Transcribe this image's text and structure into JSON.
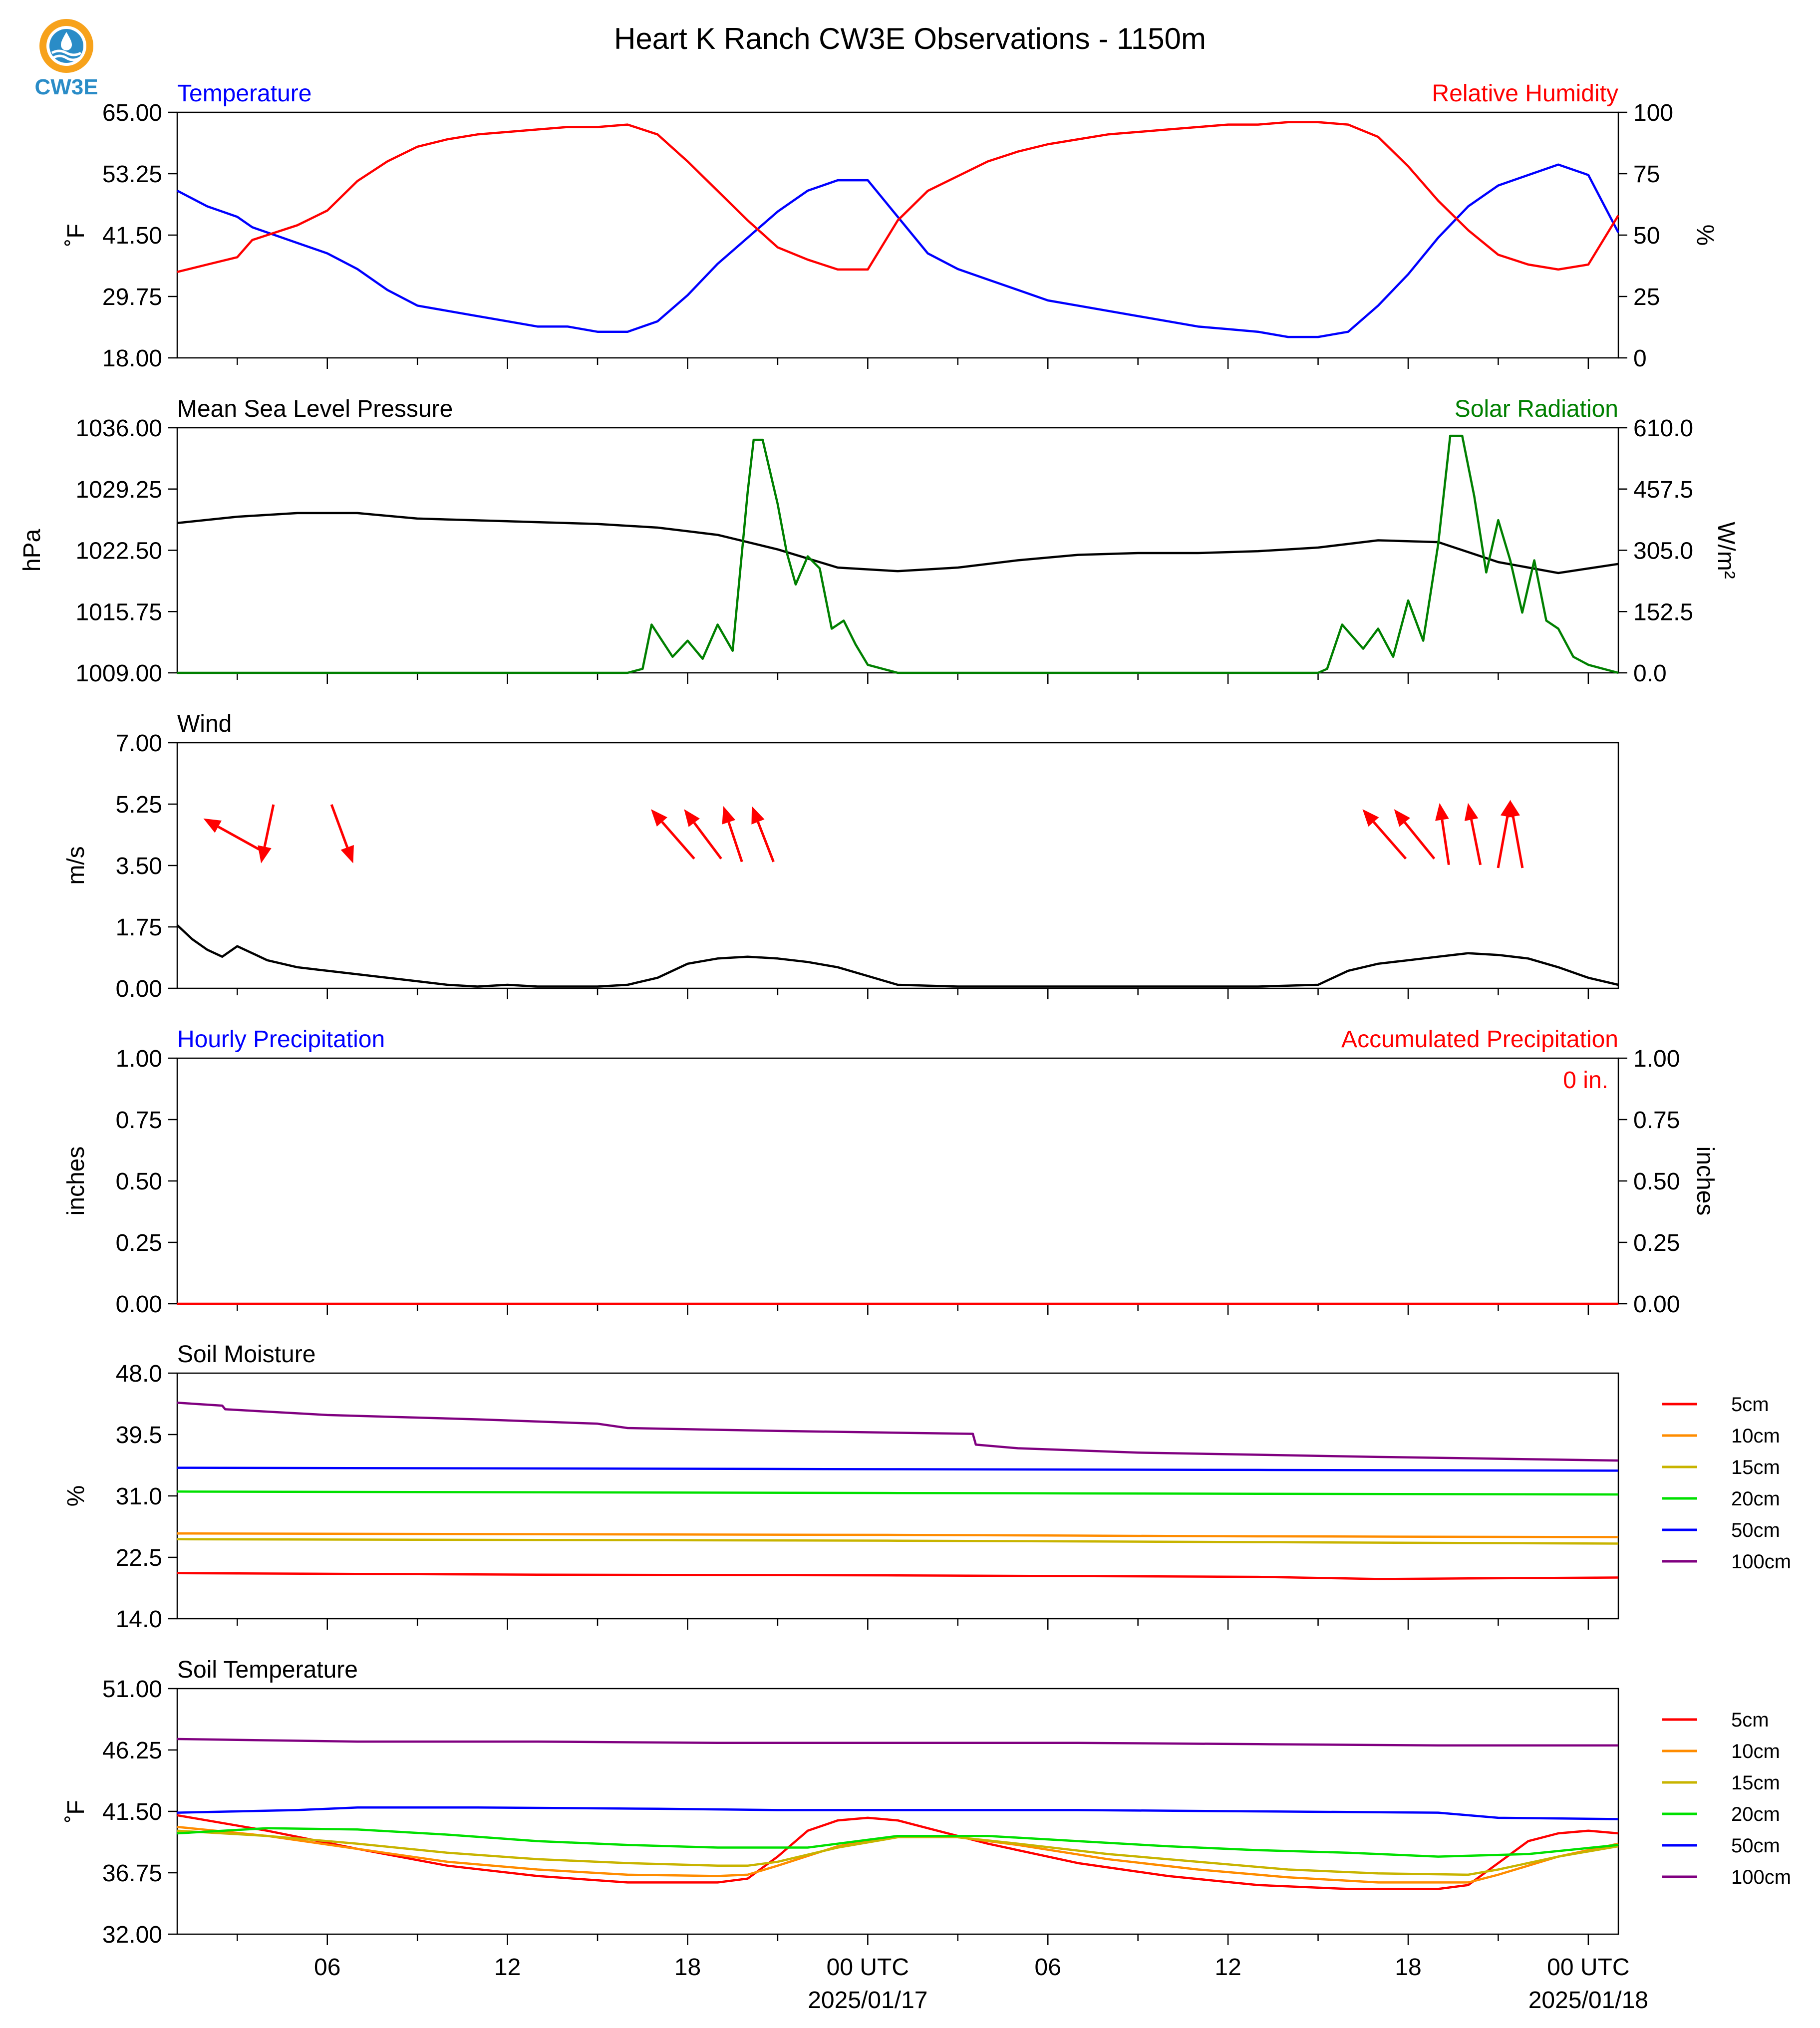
{
  "title": "Heart K Ranch CW3E Observations - 1150m",
  "logo_text": "CW3E",
  "colors": {
    "temperature": "#0000ff",
    "humidity": "#ff0000",
    "pressure": "#000000",
    "solar": "#008000",
    "wind_arrow": "#ff0000",
    "wind_line": "#000000",
    "soil_5cm": "#ff0000",
    "soil_10cm": "#ff8c00",
    "soil_15cm": "#c8b400",
    "soil_20cm": "#00e000",
    "soil_50cm": "#0000ff",
    "soil_100cm": "#800080"
  },
  "x_axis": {
    "hours_range": [
      0,
      48
    ],
    "tick_labels": [
      {
        "h": 5,
        "text": "06"
      },
      {
        "h": 11,
        "text": "12"
      },
      {
        "h": 17,
        "text": "18"
      },
      {
        "h": 23,
        "text": "00 UTC",
        "sub": "2025/01/17"
      },
      {
        "h": 29,
        "text": "06"
      },
      {
        "h": 35,
        "text": "12"
      },
      {
        "h": 41,
        "text": "18"
      },
      {
        "h": 47,
        "text": "00 UTC",
        "sub": "2025/01/18"
      }
    ]
  },
  "chart_data": [
    {
      "type": "line",
      "left_title": "Temperature",
      "right_title": "Relative Humidity",
      "ylabel": "˚F",
      "ylabel_right": "%",
      "ylim": [
        18.0,
        65.0
      ],
      "yticks": [
        "18.00",
        "29.75",
        "41.50",
        "53.25",
        "65.00"
      ],
      "ylim_right": [
        0,
        100
      ],
      "yticks_right": [
        "0",
        "25",
        "50",
        "75",
        "100"
      ],
      "series": [
        {
          "axis": "left",
          "color_key": "temperature",
          "x": [
            0,
            1,
            2,
            2.5,
            3,
            4,
            5,
            6,
            7,
            8,
            9,
            10,
            11,
            12,
            13,
            14,
            15,
            16,
            17,
            18,
            19,
            20,
            21,
            22,
            23,
            24,
            25,
            26,
            27,
            28,
            29,
            30,
            31,
            32,
            33,
            34,
            35,
            36,
            37,
            38,
            39,
            40,
            41,
            42,
            43,
            44,
            45,
            46,
            47,
            48
          ],
          "values": [
            50,
            47,
            45,
            43,
            42,
            40,
            38,
            35,
            31,
            28,
            27,
            26,
            25,
            24,
            24,
            23,
            23,
            25,
            30,
            36,
            41,
            46,
            50,
            52,
            52,
            45,
            38,
            35,
            33,
            31,
            29,
            28,
            27,
            26,
            25,
            24,
            23.5,
            23,
            22,
            22,
            23,
            28,
            34,
            41,
            47,
            51,
            53,
            55,
            53,
            42
          ]
        },
        {
          "axis": "right",
          "color_key": "humidity",
          "x": [
            0,
            1,
            2,
            2.5,
            3,
            4,
            5,
            6,
            7,
            8,
            9,
            10,
            11,
            12,
            13,
            14,
            15,
            16,
            17,
            18,
            19,
            20,
            21,
            22,
            23,
            24,
            25,
            26,
            27,
            28,
            29,
            30,
            31,
            32,
            33,
            34,
            35,
            36,
            37,
            38,
            39,
            40,
            41,
            42,
            43,
            44,
            45,
            46,
            47,
            48
          ],
          "values": [
            35,
            38,
            41,
            48,
            50,
            54,
            60,
            72,
            80,
            86,
            89,
            91,
            92,
            93,
            94,
            94,
            95,
            91,
            80,
            68,
            56,
            45,
            40,
            36,
            36,
            56,
            68,
            74,
            80,
            84,
            87,
            89,
            91,
            92,
            93,
            94,
            95,
            95,
            96,
            96,
            95,
            90,
            78,
            64,
            52,
            42,
            38,
            36,
            38,
            58
          ]
        }
      ]
    },
    {
      "type": "line",
      "left_title": "Mean Sea Level Pressure",
      "right_title": "Solar Radiation",
      "ylabel": "hPa",
      "ylabel_right": "W/m²",
      "ylim": [
        1009.0,
        1036.0
      ],
      "yticks": [
        "1009.00",
        "1015.75",
        "1022.50",
        "1029.25",
        "1036.00"
      ],
      "ylim_right": [
        0.0,
        610.0
      ],
      "yticks_right": [
        "0.0",
        "152.5",
        "305.0",
        "457.5",
        "610.0"
      ],
      "series": [
        {
          "axis": "left",
          "color_key": "pressure",
          "x": [
            0,
            2,
            4,
            6,
            8,
            10,
            12,
            14,
            16,
            18,
            20,
            22,
            24,
            26,
            28,
            30,
            32,
            34,
            36,
            38,
            40,
            42,
            44,
            46,
            48
          ],
          "values": [
            1025.5,
            1026.2,
            1026.6,
            1026.6,
            1026.0,
            1025.8,
            1025.6,
            1025.4,
            1025.0,
            1024.2,
            1022.6,
            1020.6,
            1020.2,
            1020.6,
            1021.4,
            1022.0,
            1022.2,
            1022.2,
            1022.4,
            1022.8,
            1023.6,
            1023.4,
            1021.2,
            1020.0,
            1021.0
          ]
        },
        {
          "axis": "right",
          "color_key": "solar",
          "x": [
            0,
            15,
            15.5,
            15.8,
            16.5,
            17,
            17.5,
            18,
            18.5,
            19,
            19.2,
            19.5,
            20,
            20.3,
            20.6,
            21,
            21.4,
            21.8,
            22.2,
            22.6,
            23,
            24,
            38,
            38.3,
            38.8,
            39.5,
            40,
            40.5,
            41,
            41.5,
            42,
            42.4,
            42.8,
            43.2,
            43.6,
            44,
            44.4,
            44.8,
            45.2,
            45.6,
            46,
            46.5,
            47,
            48
          ],
          "values": [
            0,
            0,
            10,
            120,
            40,
            80,
            35,
            120,
            55,
            450,
            580,
            580,
            420,
            300,
            220,
            290,
            260,
            110,
            130,
            70,
            20,
            0,
            0,
            10,
            120,
            60,
            110,
            40,
            180,
            80,
            320,
            590,
            590,
            440,
            250,
            380,
            280,
            150,
            280,
            130,
            110,
            40,
            20,
            0
          ]
        }
      ]
    },
    {
      "type": "line",
      "left_title": "Wind",
      "ylabel": "m/s",
      "ylim": [
        0.0,
        7.0
      ],
      "yticks": [
        "0.00",
        "1.75",
        "3.50",
        "5.25",
        "7.00"
      ],
      "series": [
        {
          "axis": "left",
          "color_key": "wind_line",
          "x": [
            0,
            0.5,
            1,
            1.5,
            2,
            2.5,
            3,
            3.5,
            4,
            5,
            6,
            7,
            8,
            9,
            10,
            11,
            12,
            13,
            14,
            15,
            16,
            17,
            18,
            19,
            20,
            21,
            22,
            23,
            24,
            26,
            28,
            30,
            32,
            34,
            36,
            38,
            39,
            40,
            41,
            42,
            43,
            44,
            45,
            46,
            47,
            48
          ],
          "values": [
            1.8,
            1.4,
            1.1,
            0.9,
            1.2,
            1.0,
            0.8,
            0.7,
            0.6,
            0.5,
            0.4,
            0.3,
            0.2,
            0.1,
            0.05,
            0.1,
            0.05,
            0.05,
            0.05,
            0.1,
            0.3,
            0.7,
            0.85,
            0.9,
            0.85,
            0.75,
            0.6,
            0.35,
            0.1,
            0.05,
            0.05,
            0.05,
            0.05,
            0.05,
            0.05,
            0.1,
            0.5,
            0.7,
            0.8,
            0.9,
            1.0,
            0.95,
            0.85,
            0.6,
            0.3,
            0.1
          ]
        },
        {
          "type": "arrows",
          "color_key": "wind_arrow",
          "x": [
            1.8,
            3,
            5.5,
            16.5,
            17.5,
            18.5,
            19.5,
            40.2,
            41.2,
            42.2,
            43.2,
            44.2,
            44.6
          ],
          "u": [
            -1.8,
            -0.4,
            0.7,
            -1.4,
            -1.2,
            -0.6,
            -0.7,
            -1.4,
            -1.3,
            -0.3,
            -0.4,
            0.4,
            -0.4
          ],
          "v": [
            1.0,
            -1.9,
            -1.9,
            1.6,
            1.6,
            1.8,
            1.8,
            1.6,
            1.6,
            2.0,
            2.0,
            2.2,
            2.2
          ]
        }
      ]
    },
    {
      "type": "line",
      "left_title": "Hourly Precipitation",
      "right_title": "Accumulated Precipitation",
      "annotation": "0 in.",
      "ylabel": "inches",
      "ylabel_right": "inches",
      "ylim": [
        0.0,
        1.0
      ],
      "yticks": [
        "0.00",
        "0.25",
        "0.50",
        "0.75",
        "1.00"
      ],
      "ylim_right": [
        0.0,
        1.0
      ],
      "yticks_right": [
        "0.00",
        "0.25",
        "0.50",
        "0.75",
        "1.00"
      ],
      "series": [
        {
          "axis": "left",
          "color_key": "humidity",
          "x": [
            0,
            48
          ],
          "values": [
            0,
            0
          ]
        }
      ]
    },
    {
      "type": "line",
      "left_title": "Soil Moisture",
      "ylabel": "%",
      "ylim": [
        14.0,
        48.0
      ],
      "yticks": [
        "14.0",
        "22.5",
        "31.0",
        "39.5",
        "48.0"
      ],
      "legend": [
        "5cm",
        "10cm",
        "15cm",
        "20cm",
        "50cm",
        "100cm"
      ],
      "series": [
        {
          "name": "5cm",
          "color_key": "soil_5cm",
          "x": [
            0,
            12,
            24,
            36,
            40,
            48
          ],
          "values": [
            20.3,
            20.1,
            20.0,
            19.8,
            19.5,
            19.7
          ]
        },
        {
          "name": "10cm",
          "color_key": "soil_10cm",
          "x": [
            0,
            12,
            24,
            36,
            48
          ],
          "values": [
            25.8,
            25.7,
            25.6,
            25.4,
            25.3
          ]
        },
        {
          "name": "15cm",
          "color_key": "soil_15cm",
          "x": [
            0,
            12,
            24,
            36,
            48
          ],
          "values": [
            25.0,
            24.9,
            24.8,
            24.6,
            24.4
          ]
        },
        {
          "name": "20cm",
          "color_key": "soil_20cm",
          "x": [
            0,
            12,
            24,
            36,
            48
          ],
          "values": [
            31.6,
            31.5,
            31.4,
            31.3,
            31.2
          ]
        },
        {
          "name": "50cm",
          "color_key": "soil_50cm",
          "x": [
            0,
            12,
            24,
            36,
            48
          ],
          "values": [
            34.9,
            34.8,
            34.7,
            34.6,
            34.5
          ]
        },
        {
          "name": "100cm",
          "color_key": "soil_100cm",
          "x": [
            0,
            1.5,
            1.6,
            5,
            10,
            14,
            15,
            20,
            26.5,
            26.6,
            28,
            32,
            40,
            48
          ],
          "values": [
            43.9,
            43.5,
            43.0,
            42.2,
            41.6,
            41.0,
            40.4,
            40.0,
            39.6,
            38.1,
            37.6,
            37.0,
            36.4,
            35.9
          ]
        }
      ]
    },
    {
      "type": "line",
      "left_title": "Soil Temperature",
      "ylabel": "˚F",
      "ylim": [
        32.0,
        51.0
      ],
      "yticks": [
        "32.00",
        "36.75",
        "41.50",
        "46.25",
        "51.00"
      ],
      "legend": [
        "5cm",
        "10cm",
        "15cm",
        "20cm",
        "50cm",
        "100cm"
      ],
      "series": [
        {
          "name": "5cm",
          "color_key": "soil_5cm",
          "x": [
            0,
            3,
            6,
            9,
            12,
            15,
            18,
            19,
            20,
            21,
            22,
            23,
            24,
            25,
            27,
            30,
            33,
            36,
            39,
            42,
            43,
            44,
            45,
            46,
            47,
            48
          ],
          "values": [
            41.2,
            40.0,
            38.6,
            37.3,
            36.5,
            36.0,
            36.0,
            36.3,
            38.0,
            40.0,
            40.8,
            41.0,
            40.8,
            40.2,
            39.0,
            37.5,
            36.5,
            35.8,
            35.5,
            35.5,
            35.8,
            37.5,
            39.2,
            39.8,
            40.0,
            39.8
          ]
        },
        {
          "name": "10cm",
          "color_key": "soil_10cm",
          "x": [
            0,
            3,
            6,
            9,
            12,
            15,
            18,
            19,
            20,
            22,
            24,
            26,
            28,
            31,
            34,
            37,
            40,
            43,
            44,
            46,
            48
          ],
          "values": [
            40.3,
            39.6,
            38.6,
            37.6,
            37.0,
            36.6,
            36.5,
            36.6,
            37.3,
            38.8,
            39.6,
            39.5,
            38.9,
            37.8,
            37.0,
            36.4,
            36.0,
            36.0,
            36.6,
            38.0,
            39.0
          ]
        },
        {
          "name": "15cm",
          "color_key": "soil_15cm",
          "x": [
            0,
            3,
            6,
            9,
            12,
            15,
            18,
            19,
            20,
            22,
            24,
            26,
            28,
            31,
            34,
            37,
            40,
            43,
            44,
            46,
            48
          ],
          "values": [
            40.0,
            39.6,
            39.0,
            38.3,
            37.8,
            37.5,
            37.3,
            37.3,
            37.6,
            38.7,
            39.5,
            39.5,
            39.0,
            38.2,
            37.6,
            37.0,
            36.7,
            36.6,
            37.0,
            38.0,
            38.8
          ]
        },
        {
          "name": "20cm",
          "color_key": "soil_20cm",
          "x": [
            0,
            3,
            6,
            9,
            12,
            15,
            18,
            21,
            24,
            27,
            30,
            33,
            36,
            39,
            42,
            45,
            48
          ],
          "values": [
            39.8,
            40.2,
            40.1,
            39.7,
            39.2,
            38.9,
            38.7,
            38.7,
            39.6,
            39.6,
            39.2,
            38.8,
            38.5,
            38.3,
            38.0,
            38.2,
            38.9
          ]
        },
        {
          "name": "50cm",
          "color_key": "soil_50cm",
          "x": [
            0,
            2,
            4,
            6,
            10,
            16,
            20,
            24,
            30,
            36,
            42,
            44,
            48
          ],
          "values": [
            41.4,
            41.5,
            41.6,
            41.8,
            41.8,
            41.7,
            41.6,
            41.6,
            41.6,
            41.5,
            41.4,
            41.0,
            40.9
          ]
        },
        {
          "name": "100cm",
          "color_key": "soil_100cm",
          "x": [
            0,
            6,
            12,
            18,
            24,
            30,
            36,
            42,
            48
          ],
          "values": [
            47.1,
            46.9,
            46.9,
            46.8,
            46.8,
            46.8,
            46.7,
            46.6,
            46.6
          ]
        }
      ]
    }
  ]
}
